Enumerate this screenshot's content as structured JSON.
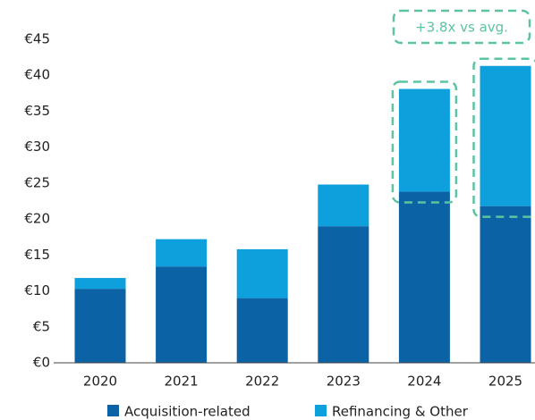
{
  "chart_data": {
    "type": "stacked_bar",
    "categories": [
      "2020",
      "2021",
      "2022",
      "2023",
      "2024",
      "2025"
    ],
    "series": [
      {
        "name": "Acquisition-related",
        "color": "#0b62a4",
        "values": [
          10.3,
          13.4,
          9.0,
          19.0,
          23.8,
          21.8
        ]
      },
      {
        "name": "Refinancing & Other",
        "color": "#0ea0dc",
        "values": [
          1.5,
          3.8,
          6.8,
          5.8,
          14.3,
          19.5
        ]
      }
    ],
    "ylim": [
      0,
      45
    ],
    "yticks": [
      {
        "value": 0,
        "label": "€0"
      },
      {
        "value": 5,
        "label": "€5"
      },
      {
        "value": 10,
        "label": "€10"
      },
      {
        "value": 15,
        "label": "€15"
      },
      {
        "value": 20,
        "label": "€20"
      },
      {
        "value": 25,
        "label": "€25"
      },
      {
        "value": 30,
        "label": "€30"
      },
      {
        "value": 35,
        "label": "€35"
      },
      {
        "value": 40,
        "label": "€40"
      },
      {
        "value": 45,
        "label": "€45"
      }
    ],
    "annotation": "+3.8x vs avg.",
    "annotation_color": "#5cc4a0",
    "legend": "bottom"
  }
}
